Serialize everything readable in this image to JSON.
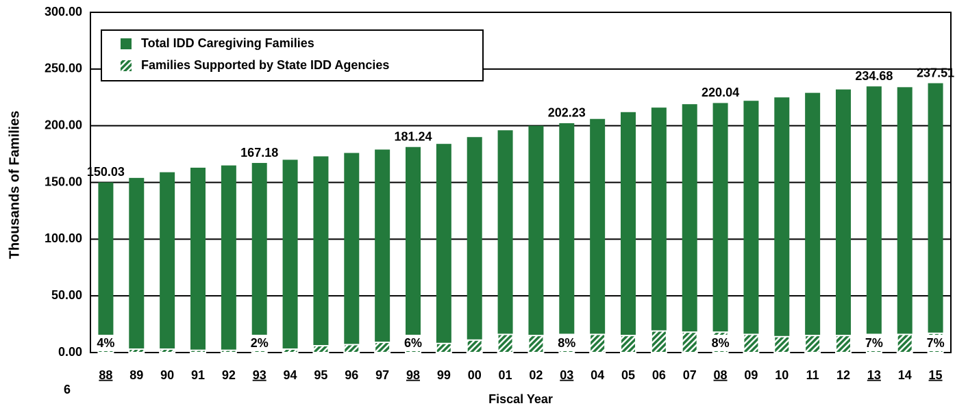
{
  "chart_data": {
    "type": "bar",
    "y_axis_label": "Thousands of Families",
    "x_axis_label": "Fiscal Year",
    "page_number": "6",
    "categories": [
      "88",
      "89",
      "90",
      "91",
      "92",
      "93",
      "94",
      "95",
      "96",
      "97",
      "98",
      "99",
      "00",
      "01",
      "02",
      "03",
      "04",
      "05",
      "06",
      "07",
      "08",
      "09",
      "10",
      "11",
      "12",
      "13",
      "14",
      "15"
    ],
    "underlined": [
      true,
      false,
      false,
      false,
      false,
      true,
      false,
      false,
      false,
      false,
      true,
      false,
      false,
      false,
      false,
      true,
      false,
      false,
      false,
      false,
      true,
      false,
      false,
      false,
      false,
      true,
      false,
      true
    ],
    "series": [
      {
        "name": "Total IDD Caregiving Families",
        "color": "#237a3c",
        "values": [
          150.03,
          154,
          159,
          163,
          165,
          167.18,
          170,
          173,
          176,
          179,
          181.24,
          184,
          190,
          196,
          200,
          202.23,
          206,
          212,
          216,
          219,
          220.04,
          222,
          225,
          229,
          232,
          234.68,
          234,
          237.51
        ],
        "value_labels": [
          "150.03",
          null,
          null,
          null,
          null,
          "167.18",
          null,
          null,
          null,
          null,
          "181.24",
          null,
          null,
          null,
          null,
          "202.23",
          null,
          null,
          null,
          null,
          "220.04",
          null,
          null,
          null,
          null,
          "234.68",
          null,
          "237.51"
        ]
      },
      {
        "name": "Families Supported by State IDD Agencies",
        "color": "#237a3c",
        "hatched": true,
        "values": [
          6,
          3,
          3,
          2,
          2,
          3.3,
          3,
          6,
          7,
          9,
          11,
          8,
          11,
          16,
          15,
          16,
          16,
          15,
          19,
          18,
          18,
          16,
          14,
          15,
          15,
          16,
          16,
          17
        ],
        "value_labels": [
          "4%",
          null,
          null,
          null,
          null,
          "2%",
          null,
          null,
          null,
          null,
          "6%",
          null,
          null,
          null,
          null,
          "8%",
          null,
          null,
          null,
          null,
          "8%",
          null,
          null,
          null,
          null,
          "7%",
          null,
          "7%"
        ]
      }
    ],
    "ylim": [
      0,
      300
    ],
    "yticks": [
      {
        "value": 0,
        "label": "0.00"
      },
      {
        "value": 50,
        "label": "50.00"
      },
      {
        "value": 100,
        "label": "100.00"
      },
      {
        "value": 150,
        "label": "150.00"
      },
      {
        "value": 200,
        "label": "200.00"
      },
      {
        "value": 250,
        "label": "250.00"
      },
      {
        "value": 300,
        "label": "300.00"
      }
    ],
    "grid": true,
    "legend": "upper left"
  }
}
